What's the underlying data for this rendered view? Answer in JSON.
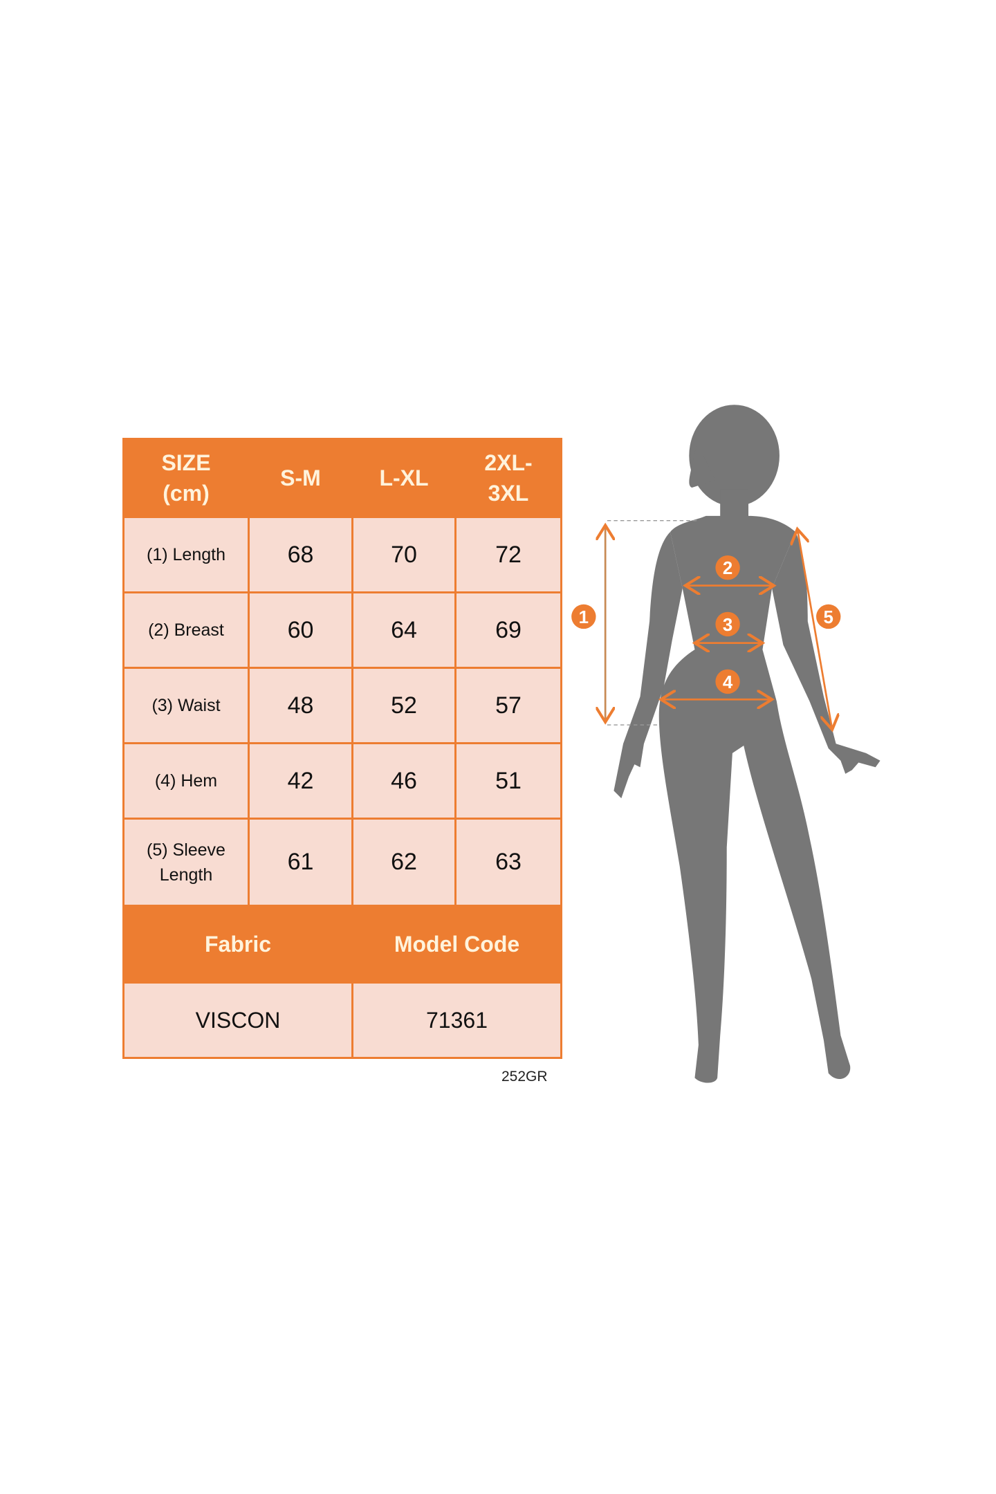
{
  "colors": {
    "accent": "#ED7D31",
    "cell": "#F8DCD2",
    "silhouette": "#777777"
  },
  "table": {
    "header": [
      "SIZE (cm)",
      "S-M",
      "L-XL",
      "2XL-3XL"
    ],
    "rows": [
      {
        "label": "(1) Length",
        "values": [
          "68",
          "70",
          "72"
        ]
      },
      {
        "label": "(2) Breast",
        "values": [
          "60",
          "64",
          "69"
        ]
      },
      {
        "label": "(3) Waist",
        "values": [
          "48",
          "52",
          "57"
        ]
      },
      {
        "label": "(4) Hem",
        "values": [
          "42",
          "46",
          "51"
        ]
      },
      {
        "label": "(5) Sleeve Length",
        "values": [
          "61",
          "62",
          "63"
        ]
      }
    ],
    "footer_header": [
      "Fabric",
      "Model Code"
    ],
    "footer_values": [
      "VISCON",
      "71361"
    ]
  },
  "code": "252GR",
  "figure": {
    "markers": [
      "1",
      "2",
      "3",
      "4",
      "5"
    ]
  }
}
